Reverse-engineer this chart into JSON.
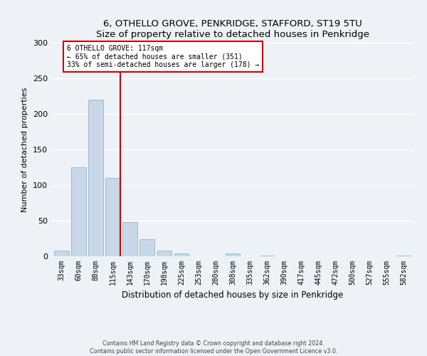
{
  "title": "6, OTHELLO GROVE, PENKRIDGE, STAFFORD, ST19 5TU",
  "subtitle": "Size of property relative to detached houses in Penkridge",
  "xlabel": "Distribution of detached houses by size in Penkridge",
  "ylabel": "Number of detached properties",
  "bar_labels": [
    "33sqm",
    "60sqm",
    "88sqm",
    "115sqm",
    "143sqm",
    "170sqm",
    "198sqm",
    "225sqm",
    "253sqm",
    "280sqm",
    "308sqm",
    "335sqm",
    "362sqm",
    "390sqm",
    "417sqm",
    "445sqm",
    "472sqm",
    "500sqm",
    "527sqm",
    "555sqm",
    "582sqm"
  ],
  "bar_values": [
    8,
    125,
    220,
    110,
    48,
    24,
    8,
    4,
    0,
    0,
    4,
    0,
    1,
    0,
    0,
    0,
    0,
    0,
    0,
    0,
    1
  ],
  "bar_color": "#c8d8e8",
  "bar_edge_color": "#a0b8cc",
  "vline_x_index": 3,
  "vline_color": "#cc0000",
  "annotation_line1": "6 OTHELLO GROVE: 117sqm",
  "annotation_line2": "← 65% of detached houses are smaller (351)",
  "annotation_line3": "33% of semi-detached houses are larger (178) →",
  "ylim": [
    0,
    300
  ],
  "yticks": [
    0,
    50,
    100,
    150,
    200,
    250,
    300
  ],
  "footer_line1": "Contains HM Land Registry data © Crown copyright and database right 2024.",
  "footer_line2": "Contains public sector information licensed under the Open Government Licence v3.0.",
  "bg_color": "#eef2f7",
  "plot_bg_color": "#eef2f7"
}
